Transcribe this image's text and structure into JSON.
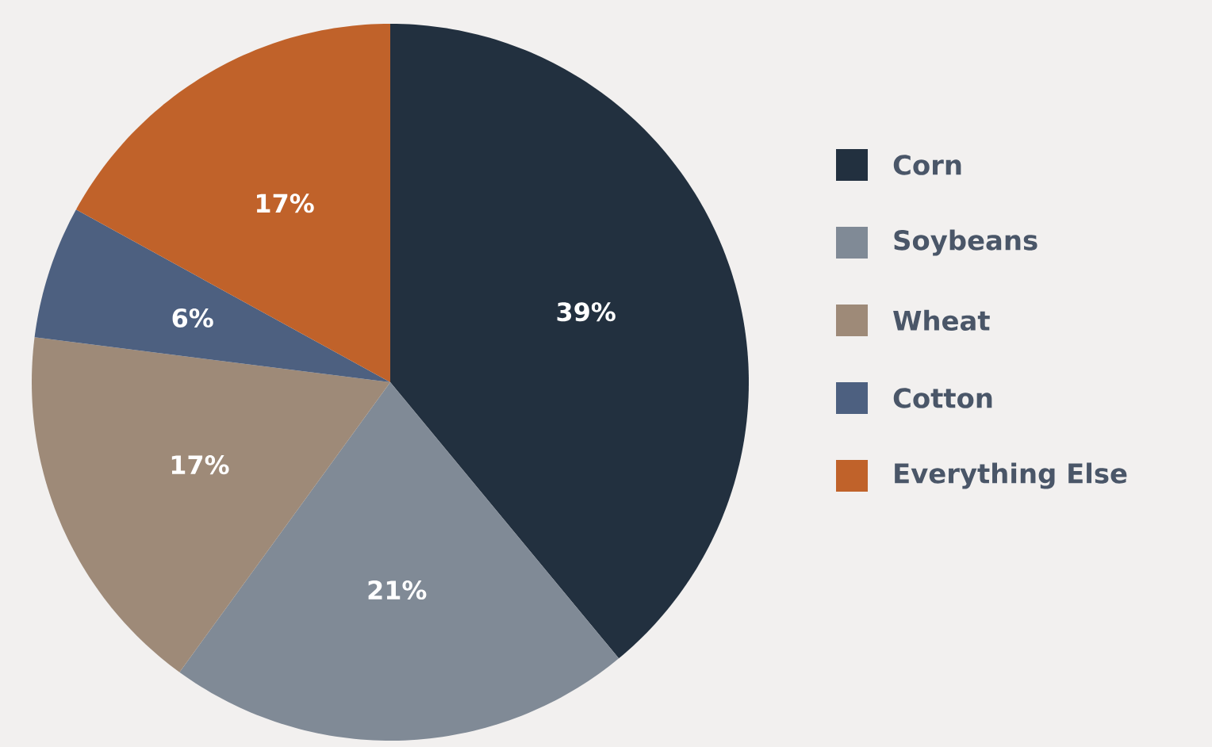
{
  "chart_data": {
    "type": "pie",
    "categories": [
      "Corn",
      "Soybeans",
      "Wheat",
      "Cotton",
      "Everything Else"
    ],
    "values": [
      39,
      21,
      17,
      6,
      17
    ],
    "value_labels": [
      "39%",
      "21%",
      "17%",
      "6%",
      "17%"
    ],
    "colors": [
      "#22303f",
      "#808a96",
      "#9e8a78",
      "#4d6080",
      "#c0622a"
    ],
    "legend": "right"
  }
}
